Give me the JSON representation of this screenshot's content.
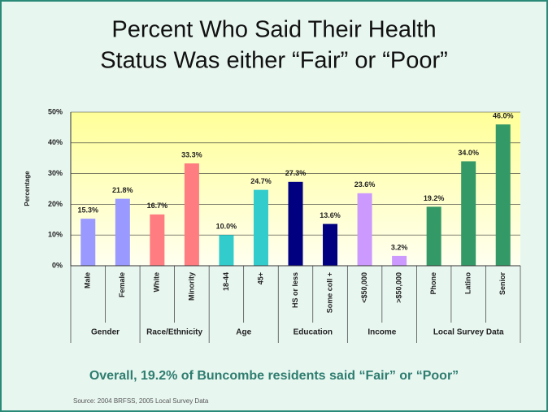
{
  "chart_data": {
    "type": "bar",
    "title_lines": [
      "Percent Who Said Their Health",
      "Status Was either “Fair” or “Poor”"
    ],
    "y_label": "Percentage",
    "ylim": [
      0,
      50
    ],
    "yticks": [
      {
        "value": 0,
        "label": "0%"
      },
      {
        "value": 10,
        "label": "10%"
      },
      {
        "value": 20,
        "label": "20%"
      },
      {
        "value": 30,
        "label": "30%"
      },
      {
        "value": 40,
        "label": "40%"
      },
      {
        "value": 50,
        "label": "50%"
      }
    ],
    "grid": true,
    "series": [
      {
        "name": "Gender",
        "color": "#9999ff",
        "categories": [
          "Male",
          "Female"
        ],
        "values": [
          15.3,
          21.8
        ],
        "value_labels": [
          "15.3%",
          "21.8%"
        ]
      },
      {
        "name": "Race/Ethnicity",
        "color": "#ff7c80",
        "categories": [
          "White",
          "Minority"
        ],
        "values": [
          16.7,
          33.3
        ],
        "value_labels": [
          "16.7%",
          "33.3%"
        ]
      },
      {
        "name": "Age",
        "color": "#33cccc",
        "categories": [
          "18-44",
          "45+"
        ],
        "values": [
          10.0,
          24.7
        ],
        "value_labels": [
          "10.0%",
          "24.7%"
        ]
      },
      {
        "name": "Education",
        "color": "#000080",
        "categories": [
          "HS or less",
          "Some coll +"
        ],
        "values": [
          27.3,
          13.6
        ],
        "value_labels": [
          "27.3%",
          "13.6%"
        ]
      },
      {
        "name": "Income",
        "color": "#cc99ff",
        "categories": [
          "<$50,000",
          ">$50,000"
        ],
        "values": [
          23.6,
          3.2
        ],
        "value_labels": [
          "23.6%",
          "3.2%"
        ]
      },
      {
        "name": "Local Survey Data",
        "color": "#339966",
        "categories": [
          "Phone",
          "Latino",
          "Senior"
        ],
        "values": [
          19.2,
          34.0,
          46.0
        ],
        "value_labels": [
          "19.2%",
          "34.0%",
          "46.0%"
        ]
      }
    ],
    "summary": "Overall, 19.2% of Buncombe residents said “Fair” or “Poor”",
    "source": "Source: 2004 BRFSS, 2005 Local Survey Data"
  }
}
